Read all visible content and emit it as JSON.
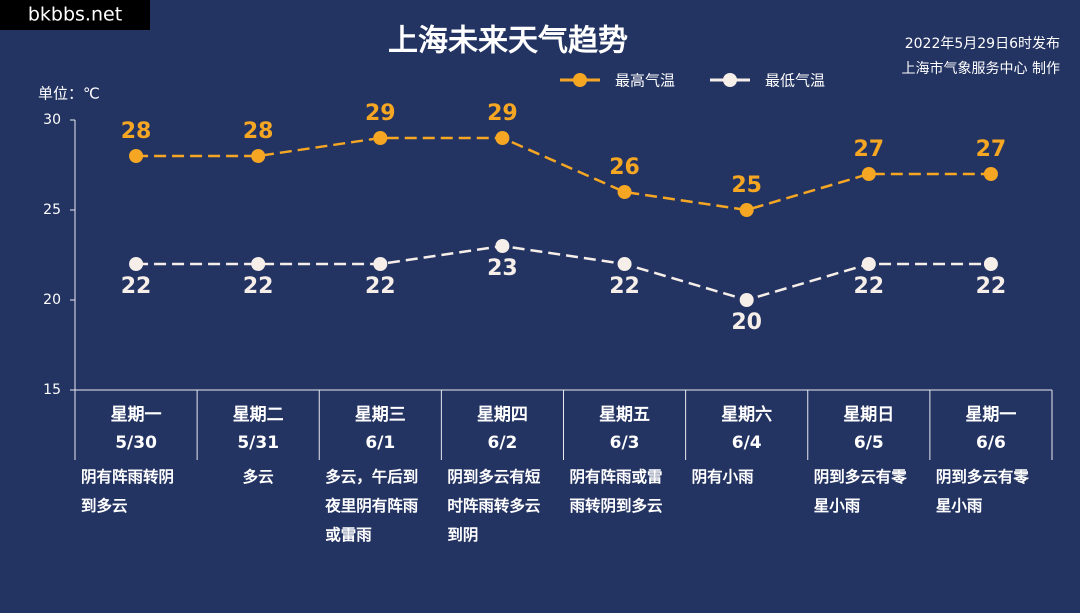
{
  "watermark": "bkbbs.net",
  "chart_data": {
    "type": "line",
    "title": "上海未来天气趋势",
    "subtitle": [
      "2022年5月29日6时发布",
      "上海市气象服务中心 制作"
    ],
    "y_label": "单位：℃",
    "categories": [
      "5/30",
      "5/31",
      "6/1",
      "6/2",
      "6/3",
      "6/4",
      "6/5",
      "6/6"
    ],
    "weekdays": [
      "星期一",
      "星期二",
      "星期三",
      "星期四",
      "星期五",
      "星期六",
      "星期日",
      "星期一"
    ],
    "descriptions": [
      "阴有阵雨转阴到多云",
      "多云",
      "多云，午后到夜里阴有阵雨或雷雨",
      "阴到多云有短时阵雨转多云到阴",
      "阴有阵雨或雷雨转阴到多云",
      "阴有小雨",
      "阴到多云有零星小雨",
      "阴到多云有零星小雨"
    ],
    "series": [
      {
        "name": "最高气温",
        "color": "#f5a623",
        "values": [
          28,
          28,
          29,
          29,
          26,
          25,
          27,
          27
        ]
      },
      {
        "name": "最低气温",
        "color": "#f6eee8",
        "values": [
          22,
          22,
          22,
          23,
          22,
          20,
          22,
          22
        ]
      }
    ],
    "ylim": [
      15,
      30
    ],
    "yticks": [
      15,
      20,
      25,
      30
    ]
  }
}
